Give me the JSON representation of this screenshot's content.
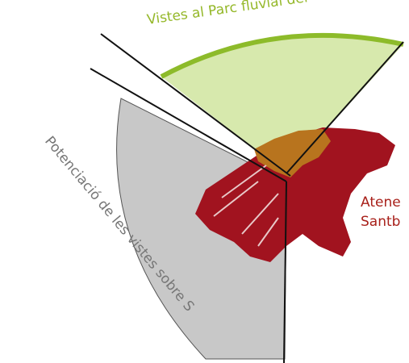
{
  "labels": {
    "top": "Vistes al Parc fluvial del",
    "left": "Potenciació de les vistes sobre S",
    "right_line1": "Atene",
    "right_line2": "Santb"
  }
}
